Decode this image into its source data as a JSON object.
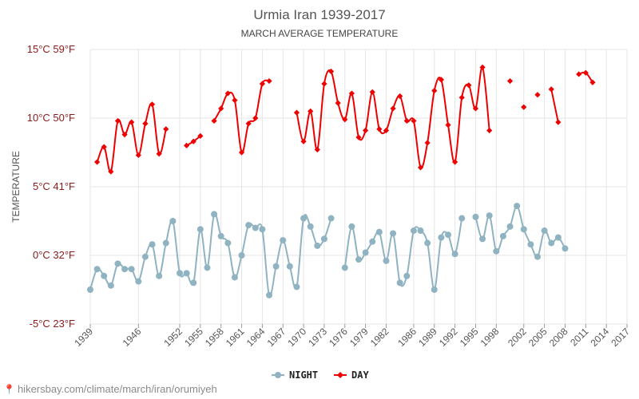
{
  "footer": {
    "text": "hikersbay.com/climate/march/iran/orumiyeh",
    "icon": "location-pin-icon"
  },
  "colors": {
    "day": "#ee0000",
    "night": "#8fb3c1",
    "grid": "#e6e6e6",
    "ytick": "#8b1a1a"
  },
  "chart_data": {
    "type": "line",
    "title": "Urmia Iran 1939-2017",
    "subtitle": "MARCH AVERAGE TEMPERATURE",
    "ylabel": "TEMPERATURE",
    "xlabel": "",
    "ylim": [
      -5,
      15
    ],
    "xlim": [
      1939,
      2017
    ],
    "grid": true,
    "legend_position": "bottom-center",
    "y_ticks": [
      {
        "value": -5,
        "label": "-5°C 23°F"
      },
      {
        "value": 0,
        "label": "0°C 32°F"
      },
      {
        "value": 5,
        "label": "5°C 41°F"
      },
      {
        "value": 10,
        "label": "10°C 50°F"
      },
      {
        "value": 15,
        "label": "15°C 59°F"
      }
    ],
    "x_ticks": [
      1939,
      1946,
      1952,
      1955,
      1958,
      1961,
      1964,
      1967,
      1970,
      1973,
      1976,
      1979,
      1982,
      1986,
      1989,
      1992,
      1995,
      1998,
      2002,
      2005,
      2008,
      2011,
      2014,
      2017
    ],
    "series": [
      {
        "name": "DAY",
        "color": "#ee0000",
        "marker": "diamond",
        "points": [
          [
            1940,
            6.8
          ],
          [
            1941,
            7.9
          ],
          [
            1942,
            6.1
          ],
          [
            1943,
            9.8
          ],
          [
            1944,
            8.8
          ],
          [
            1945,
            9.7
          ],
          [
            1946,
            7.3
          ],
          [
            1947,
            9.6
          ],
          [
            1948,
            11.0
          ],
          [
            1949,
            7.4
          ],
          [
            1950,
            9.2
          ],
          [
            1953,
            8.0
          ],
          [
            1954,
            8.3
          ],
          [
            1955,
            8.7
          ],
          [
            1957,
            9.8
          ],
          [
            1958,
            10.7
          ],
          [
            1959,
            11.8
          ],
          [
            1960,
            11.3
          ],
          [
            1961,
            7.5
          ],
          [
            1962,
            9.6
          ],
          [
            1963,
            10.0
          ],
          [
            1964,
            12.5
          ],
          [
            1965,
            12.7
          ],
          [
            1969,
            10.4
          ],
          [
            1970,
            8.3
          ],
          [
            1971,
            10.5
          ],
          [
            1972,
            7.7
          ],
          [
            1973,
            12.5
          ],
          [
            1974,
            13.4
          ],
          [
            1975,
            11.1
          ],
          [
            1976,
            9.9
          ],
          [
            1977,
            11.8
          ],
          [
            1978,
            8.6
          ],
          [
            1979,
            9.1
          ],
          [
            1980,
            11.9
          ],
          [
            1981,
            9.2
          ],
          [
            1982,
            9.1
          ],
          [
            1983,
            10.7
          ],
          [
            1984,
            11.6
          ],
          [
            1985,
            9.8
          ],
          [
            1986,
            9.8
          ],
          [
            1987,
            6.4
          ],
          [
            1988,
            8.2
          ],
          [
            1989,
            12.0
          ],
          [
            1990,
            12.8
          ],
          [
            1991,
            9.5
          ],
          [
            1992,
            6.8
          ],
          [
            1993,
            11.5
          ],
          [
            1994,
            12.4
          ],
          [
            1995,
            10.7
          ],
          [
            1996,
            13.7
          ],
          [
            1997,
            9.1
          ],
          [
            2000,
            12.7
          ],
          [
            2002,
            10.8
          ],
          [
            2004,
            11.7
          ],
          [
            2006,
            12.1
          ],
          [
            2007,
            9.7
          ],
          [
            2010,
            13.2
          ],
          [
            2011,
            13.3
          ],
          [
            2012,
            12.6
          ]
        ]
      },
      {
        "name": "NIGHT",
        "color": "#8fb3c1",
        "marker": "circle",
        "points": [
          [
            1939,
            -2.5
          ],
          [
            1940,
            -1.0
          ],
          [
            1941,
            -1.5
          ],
          [
            1942,
            -2.2
          ],
          [
            1943,
            -0.6
          ],
          [
            1944,
            -1.0
          ],
          [
            1945,
            -1.0
          ],
          [
            1946,
            -1.9
          ],
          [
            1947,
            -0.1
          ],
          [
            1948,
            0.8
          ],
          [
            1949,
            -1.5
          ],
          [
            1950,
            0.9
          ],
          [
            1951,
            2.5
          ],
          [
            1952,
            -1.3
          ],
          [
            1953,
            -1.3
          ],
          [
            1954,
            -2.0
          ],
          [
            1955,
            1.9
          ],
          [
            1956,
            -0.9
          ],
          [
            1957,
            3.0
          ],
          [
            1958,
            1.4
          ],
          [
            1959,
            0.9
          ],
          [
            1960,
            -1.6
          ],
          [
            1961,
            0.0
          ],
          [
            1962,
            2.2
          ],
          [
            1963,
            2.0
          ],
          [
            1964,
            1.9
          ],
          [
            1965,
            -2.9
          ],
          [
            1966,
            -0.8
          ],
          [
            1967,
            1.1
          ],
          [
            1968,
            -0.8
          ],
          [
            1969,
            -2.3
          ],
          [
            1970,
            2.7
          ],
          [
            1971,
            2.1
          ],
          [
            1972,
            0.7
          ],
          [
            1973,
            1.2
          ],
          [
            1974,
            2.7
          ],
          [
            1976,
            -0.9
          ],
          [
            1977,
            2.1
          ],
          [
            1978,
            -0.3
          ],
          [
            1979,
            0.2
          ],
          [
            1980,
            1.0
          ],
          [
            1981,
            1.7
          ],
          [
            1982,
            -0.4
          ],
          [
            1983,
            1.6
          ],
          [
            1984,
            -2.0
          ],
          [
            1985,
            -1.5
          ],
          [
            1986,
            1.8
          ],
          [
            1987,
            1.8
          ],
          [
            1988,
            0.9
          ],
          [
            1989,
            -2.5
          ],
          [
            1990,
            1.3
          ],
          [
            1991,
            1.5
          ],
          [
            1992,
            0.1
          ],
          [
            1993,
            2.7
          ],
          [
            1995,
            2.8
          ],
          [
            1996,
            1.2
          ],
          [
            1997,
            2.9
          ],
          [
            1998,
            0.3
          ],
          [
            1999,
            1.4
          ],
          [
            2000,
            2.1
          ],
          [
            2001,
            3.6
          ],
          [
            2002,
            1.9
          ],
          [
            2003,
            0.8
          ],
          [
            2004,
            -0.1
          ],
          [
            2005,
            1.8
          ],
          [
            2006,
            0.9
          ],
          [
            2007,
            1.3
          ],
          [
            2008,
            0.5
          ]
        ]
      }
    ]
  }
}
